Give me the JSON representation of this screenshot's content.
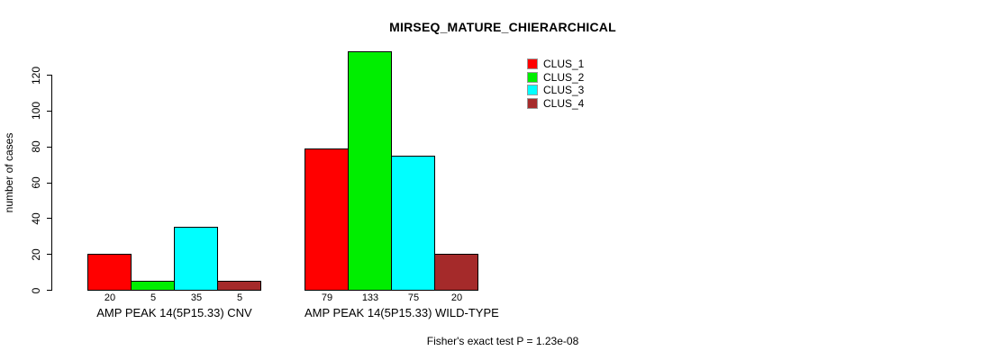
{
  "title": "MIRSEQ_MATURE_CHIERARCHICAL",
  "footer": "Fisher's exact test P = 1.23e-08",
  "chart_data": {
    "type": "bar",
    "title": "MIRSEQ_MATURE_CHIERARCHICAL",
    "xlabel": "",
    "ylabel": "number of cases",
    "yticks": [
      0,
      20,
      40,
      60,
      80,
      100,
      120
    ],
    "ylim": [
      0,
      133
    ],
    "grid": false,
    "legend_position": "top-right",
    "series": [
      {
        "name": "CLUS_1",
        "color": "#FF0000",
        "values": [
          20,
          79
        ]
      },
      {
        "name": "CLUS_2",
        "color": "#00EE00",
        "values": [
          5,
          133
        ]
      },
      {
        "name": "CLUS_3",
        "color": "#00FFFF",
        "values": [
          35,
          75
        ]
      },
      {
        "name": "CLUS_4",
        "color": "#A52A2A",
        "values": [
          5,
          20
        ]
      }
    ],
    "groups": [
      {
        "label": "AMP PEAK 14(5P15.33) CNV",
        "values": [
          20,
          5,
          35,
          5
        ],
        "value_labels": [
          "20",
          "5",
          "35",
          "5"
        ]
      },
      {
        "label": "AMP PEAK 14(5P15.33) WILD-TYPE",
        "values": [
          79,
          133,
          75,
          20
        ],
        "value_labels": [
          "79",
          "133",
          "75",
          "20"
        ]
      }
    ],
    "annotation": "Fisher's exact test P = 1.23e-08"
  }
}
